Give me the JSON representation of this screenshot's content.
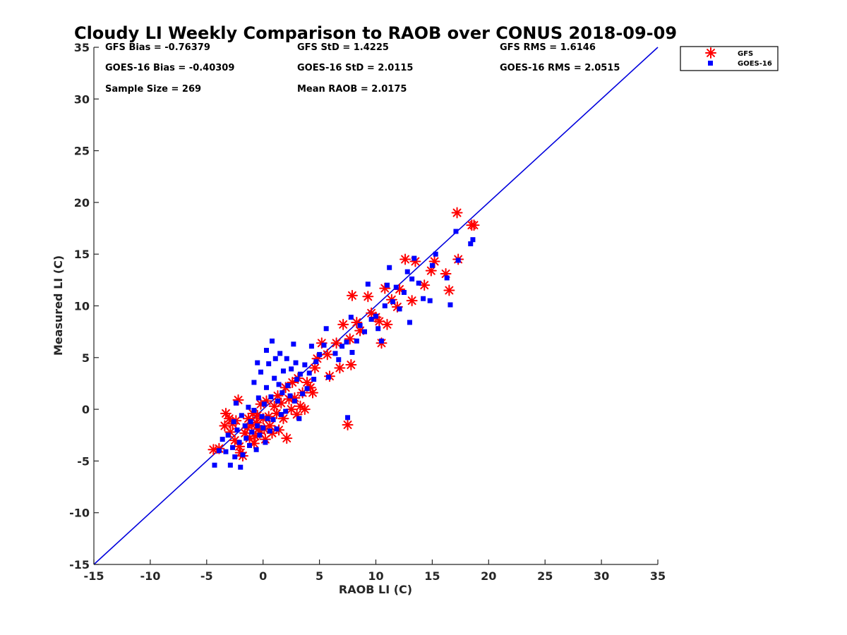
{
  "chart_data": {
    "type": "scatter",
    "title": "Cloudy LI Weekly Comparison to RAOB over CONUS 2018-09-09",
    "xlabel": "RAOB LI (C)",
    "ylabel": "Measured LI (C)",
    "xlim": [
      -15,
      35
    ],
    "ylim": [
      -15,
      35
    ],
    "xticks": [
      "-15",
      "-10",
      "-5",
      "0",
      "5",
      "10",
      "15",
      "20",
      "25",
      "30",
      "35"
    ],
    "yticks": [
      "-15",
      "-10",
      "-5",
      "0",
      "5",
      "10",
      "15",
      "20",
      "25",
      "30",
      "35"
    ],
    "grid": false,
    "legend_position": "outside-top-right",
    "stats": [
      [
        "GFS Bias = -0.76379",
        "GFS StD = 1.4225",
        "GFS RMS = 1.6146"
      ],
      [
        "GOES-16 Bias = -0.40309",
        "GOES-16 StD = 2.0115",
        "GOES-16 RMS = 2.0515"
      ],
      [
        "Sample Size = 269",
        "Mean RAOB = 2.0175",
        ""
      ]
    ],
    "reference_line": {
      "from": [
        -15,
        -15
      ],
      "to": [
        35,
        35
      ],
      "color": "#0000dd"
    },
    "series": [
      {
        "name": "GFS",
        "marker": "asterisk",
        "color": "#ff0000",
        "points": [
          [
            -4.4,
            -3.9
          ],
          [
            -3.9,
            -3.8
          ],
          [
            -3.4,
            -1.6
          ],
          [
            -3.3,
            -0.4
          ],
          [
            -3.0,
            -0.9
          ],
          [
            -2.9,
            -2.2
          ],
          [
            -2.7,
            -1.4
          ],
          [
            -2.5,
            -3.0
          ],
          [
            -2.4,
            -1.1
          ],
          [
            -2.2,
            0.9
          ],
          [
            -2.1,
            -3.6
          ],
          [
            -2.0,
            -4.2
          ],
          [
            -1.8,
            -4.5
          ],
          [
            -1.6,
            -2.3
          ],
          [
            -1.4,
            -1.8
          ],
          [
            -1.3,
            -0.9
          ],
          [
            -1.2,
            -2.8
          ],
          [
            -1.0,
            -1.5
          ],
          [
            -0.9,
            -0.4
          ],
          [
            -0.8,
            -3.3
          ],
          [
            -0.7,
            -2.6
          ],
          [
            -0.6,
            -1.3
          ],
          [
            -0.5,
            -0.6
          ],
          [
            -0.4,
            -1.9
          ],
          [
            -0.3,
            -2.3
          ],
          [
            -0.2,
            0.5
          ],
          [
            0.0,
            -0.9
          ],
          [
            0.1,
            -1.9
          ],
          [
            0.2,
            -2.9
          ],
          [
            0.3,
            0.8
          ],
          [
            0.5,
            -0.7
          ],
          [
            0.6,
            -1.6
          ],
          [
            0.8,
            -2.3
          ],
          [
            1.0,
            0.3
          ],
          [
            1.2,
            -0.4
          ],
          [
            1.3,
            1.3
          ],
          [
            1.4,
            -2.0
          ],
          [
            1.6,
            0.6
          ],
          [
            1.8,
            -0.9
          ],
          [
            2.0,
            2.1
          ],
          [
            2.1,
            -2.8
          ],
          [
            2.3,
            1.0
          ],
          [
            2.5,
            0.0
          ],
          [
            2.6,
            2.6
          ],
          [
            2.8,
            1.1
          ],
          [
            3.0,
            -0.5
          ],
          [
            3.1,
            3.0
          ],
          [
            3.3,
            0.3
          ],
          [
            3.5,
            1.6
          ],
          [
            3.7,
            0.0
          ],
          [
            3.9,
            2.6
          ],
          [
            4.2,
            2.1
          ],
          [
            4.4,
            1.6
          ],
          [
            4.6,
            4.0
          ],
          [
            4.8,
            4.9
          ],
          [
            5.2,
            6.4
          ],
          [
            5.7,
            5.3
          ],
          [
            5.9,
            3.2
          ],
          [
            6.5,
            6.4
          ],
          [
            6.8,
            4.0
          ],
          [
            7.1,
            8.2
          ],
          [
            7.5,
            -1.5
          ],
          [
            7.7,
            6.8
          ],
          [
            7.8,
            4.3
          ],
          [
            7.9,
            11.0
          ],
          [
            8.3,
            8.4
          ],
          [
            8.6,
            7.6
          ],
          [
            9.3,
            10.9
          ],
          [
            9.6,
            9.3
          ],
          [
            10.0,
            8.9
          ],
          [
            10.3,
            8.5
          ],
          [
            10.5,
            6.4
          ],
          [
            10.8,
            11.7
          ],
          [
            11.0,
            8.2
          ],
          [
            11.4,
            10.6
          ],
          [
            11.9,
            9.9
          ],
          [
            12.1,
            11.6
          ],
          [
            12.6,
            14.5
          ],
          [
            13.2,
            10.5
          ],
          [
            13.5,
            14.3
          ],
          [
            14.3,
            12.0
          ],
          [
            14.9,
            13.4
          ],
          [
            15.2,
            14.3
          ],
          [
            16.2,
            13.1
          ],
          [
            16.5,
            11.5
          ],
          [
            17.2,
            19.0
          ],
          [
            17.3,
            14.5
          ],
          [
            18.5,
            17.8
          ],
          [
            18.7,
            17.8
          ]
        ]
      },
      {
        "name": "GOES-16",
        "marker": "square",
        "color": "#0000ff",
        "points": [
          [
            -4.3,
            -5.4
          ],
          [
            -3.9,
            -4.0
          ],
          [
            -3.6,
            -2.9
          ],
          [
            -3.3,
            -4.1
          ],
          [
            -3.1,
            -2.5
          ],
          [
            -2.9,
            -5.4
          ],
          [
            -2.7,
            -3.7
          ],
          [
            -2.6,
            -1.2
          ],
          [
            -2.5,
            -4.6
          ],
          [
            -2.4,
            0.6
          ],
          [
            -2.3,
            -2.0
          ],
          [
            -2.1,
            -3.2
          ],
          [
            -2.0,
            -5.6
          ],
          [
            -1.9,
            -0.6
          ],
          [
            -1.8,
            -4.4
          ],
          [
            -1.6,
            -1.6
          ],
          [
            -1.5,
            -2.8
          ],
          [
            -1.3,
            0.2
          ],
          [
            -1.2,
            -3.5
          ],
          [
            -1.1,
            -1.2
          ],
          [
            -1.0,
            -2.2
          ],
          [
            -0.8,
            -0.1
          ],
          [
            -0.8,
            2.6
          ],
          [
            -0.6,
            -3.9
          ],
          [
            -0.5,
            4.5
          ],
          [
            -0.5,
            -1.6
          ],
          [
            -0.4,
            1.1
          ],
          [
            -0.3,
            -2.5
          ],
          [
            -0.2,
            3.6
          ],
          [
            -0.1,
            -0.7
          ],
          [
            0.0,
            -1.8
          ],
          [
            0.1,
            0.5
          ],
          [
            0.2,
            -3.2
          ],
          [
            0.3,
            5.7
          ],
          [
            0.3,
            2.1
          ],
          [
            0.4,
            -0.9
          ],
          [
            0.5,
            4.4
          ],
          [
            0.6,
            -2.1
          ],
          [
            0.7,
            1.2
          ],
          [
            0.8,
            6.6
          ],
          [
            0.9,
            -1.0
          ],
          [
            1.0,
            3.0
          ],
          [
            1.1,
            4.9
          ],
          [
            1.2,
            -1.9
          ],
          [
            1.3,
            0.8
          ],
          [
            1.4,
            2.4
          ],
          [
            1.5,
            5.4
          ],
          [
            1.6,
            -0.5
          ],
          [
            1.7,
            1.6
          ],
          [
            1.8,
            3.7
          ],
          [
            2.0,
            -0.2
          ],
          [
            2.1,
            4.9
          ],
          [
            2.2,
            2.3
          ],
          [
            2.4,
            1.3
          ],
          [
            2.5,
            3.9
          ],
          [
            2.7,
            6.3
          ],
          [
            2.8,
            0.8
          ],
          [
            2.9,
            4.5
          ],
          [
            3.0,
            2.9
          ],
          [
            3.2,
            -0.9
          ],
          [
            3.3,
            3.4
          ],
          [
            3.5,
            1.5
          ],
          [
            3.7,
            4.3
          ],
          [
            3.9,
            2.0
          ],
          [
            4.1,
            3.5
          ],
          [
            4.3,
            6.1
          ],
          [
            4.5,
            2.9
          ],
          [
            4.7,
            4.6
          ],
          [
            5.0,
            5.3
          ],
          [
            5.4,
            6.2
          ],
          [
            5.6,
            7.8
          ],
          [
            5.8,
            3.1
          ],
          [
            6.4,
            5.4
          ],
          [
            6.7,
            4.8
          ],
          [
            7.0,
            6.1
          ],
          [
            7.4,
            6.5
          ],
          [
            7.5,
            -0.8
          ],
          [
            7.8,
            8.9
          ],
          [
            7.9,
            5.5
          ],
          [
            8.3,
            6.6
          ],
          [
            8.6,
            8.1
          ],
          [
            9.0,
            7.5
          ],
          [
            9.3,
            12.1
          ],
          [
            9.6,
            8.7
          ],
          [
            10.0,
            9.0
          ],
          [
            10.2,
            7.8
          ],
          [
            10.5,
            6.6
          ],
          [
            10.8,
            10.0
          ],
          [
            11.0,
            12.0
          ],
          [
            11.2,
            13.7
          ],
          [
            11.5,
            10.4
          ],
          [
            11.8,
            11.8
          ],
          [
            12.1,
            9.7
          ],
          [
            12.5,
            11.3
          ],
          [
            12.8,
            13.3
          ],
          [
            13.0,
            8.4
          ],
          [
            13.2,
            12.6
          ],
          [
            13.4,
            14.6
          ],
          [
            13.8,
            12.2
          ],
          [
            14.2,
            10.7
          ],
          [
            14.8,
            10.5
          ],
          [
            15.0,
            13.9
          ],
          [
            15.3,
            15.0
          ],
          [
            16.3,
            12.7
          ],
          [
            16.6,
            10.1
          ],
          [
            17.1,
            17.2
          ],
          [
            17.3,
            14.4
          ],
          [
            18.4,
            16.0
          ],
          [
            18.6,
            16.4
          ]
        ]
      }
    ]
  }
}
